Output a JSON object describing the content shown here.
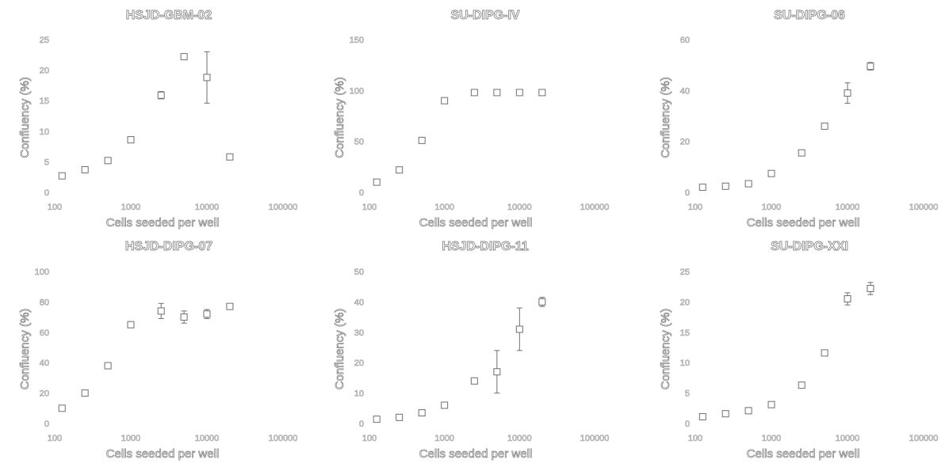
{
  "chart_data": [
    {
      "type": "scatter",
      "title": "HSJD-GBM-02",
      "xlabel": "Cells seeded per well",
      "ylabel": "Confluency (%)",
      "xscale": "log",
      "xlim": [
        100,
        100000
      ],
      "ylim": [
        0,
        25
      ],
      "xticks": [
        "100",
        "1000",
        "10000",
        "100000"
      ],
      "yticks": [
        "0",
        "5",
        "10",
        "15",
        "20",
        "25"
      ],
      "points": [
        {
          "x": 125,
          "y": 2.7,
          "err": 0.3
        },
        {
          "x": 250,
          "y": 3.7,
          "err": 0.3
        },
        {
          "x": 500,
          "y": 5.2,
          "err": 0.3
        },
        {
          "x": 1000,
          "y": 8.6,
          "err": 0.4
        },
        {
          "x": 2500,
          "y": 15.9,
          "err": 0.6
        },
        {
          "x": 5000,
          "y": 22.2,
          "err": 0.5
        },
        {
          "x": 10000,
          "y": 18.8,
          "err": 4.2
        },
        {
          "x": 20000,
          "y": 5.8,
          "err": 0.4
        }
      ]
    },
    {
      "type": "scatter",
      "title": "SU-DIPG-IV",
      "xlabel": "Cells seeded per well",
      "ylabel": "Confluency (%)",
      "xscale": "log",
      "xlim": [
        100,
        100000
      ],
      "ylim": [
        0,
        150
      ],
      "xticks": [
        "100",
        "1000",
        "10000",
        "100000"
      ],
      "yticks": [
        "0",
        "50",
        "100",
        "150"
      ],
      "points": [
        {
          "x": 125,
          "y": 10,
          "err": 1
        },
        {
          "x": 250,
          "y": 22,
          "err": 1
        },
        {
          "x": 500,
          "y": 51,
          "err": 2
        },
        {
          "x": 1000,
          "y": 90,
          "err": 1.5
        },
        {
          "x": 2500,
          "y": 98,
          "err": 1
        },
        {
          "x": 5000,
          "y": 98,
          "err": 1
        },
        {
          "x": 10000,
          "y": 98,
          "err": 1
        },
        {
          "x": 20000,
          "y": 98,
          "err": 1
        }
      ]
    },
    {
      "type": "scatter",
      "title": "SU-DIPG-06",
      "xlabel": "Cells seeded per well",
      "ylabel": "Confluency (%)",
      "xscale": "log",
      "xlim": [
        100,
        100000
      ],
      "ylim": [
        0,
        60
      ],
      "xticks": [
        "100",
        "1000",
        "10000",
        "100000"
      ],
      "yticks": [
        "0",
        "20",
        "40",
        "60"
      ],
      "points": [
        {
          "x": 125,
          "y": 2,
          "err": 0.3
        },
        {
          "x": 250,
          "y": 2.4,
          "err": 0.3
        },
        {
          "x": 500,
          "y": 3.4,
          "err": 0.3
        },
        {
          "x": 1000,
          "y": 7.4,
          "err": 0.5
        },
        {
          "x": 2500,
          "y": 15.5,
          "err": 0.7
        },
        {
          "x": 5000,
          "y": 26,
          "err": 1
        },
        {
          "x": 10000,
          "y": 39,
          "err": 4
        },
        {
          "x": 20000,
          "y": 49.5,
          "err": 1.5
        }
      ]
    },
    {
      "type": "scatter",
      "title": "HSJD-DIPG-07",
      "xlabel": "Cells seeded per well",
      "ylabel": "Confluency (%)",
      "xscale": "log",
      "xlim": [
        100,
        100000
      ],
      "ylim": [
        0,
        100
      ],
      "xticks": [
        "100",
        "1000",
        "10000",
        "100000"
      ],
      "yticks": [
        "0",
        "20",
        "40",
        "60",
        "80",
        "100"
      ],
      "points": [
        {
          "x": 125,
          "y": 10,
          "err": 1
        },
        {
          "x": 250,
          "y": 20,
          "err": 1
        },
        {
          "x": 500,
          "y": 38,
          "err": 1
        },
        {
          "x": 1000,
          "y": 65,
          "err": 1.5
        },
        {
          "x": 2500,
          "y": 74,
          "err": 5
        },
        {
          "x": 5000,
          "y": 70,
          "err": 4
        },
        {
          "x": 10000,
          "y": 72,
          "err": 3
        },
        {
          "x": 20000,
          "y": 77,
          "err": 2
        }
      ]
    },
    {
      "type": "scatter",
      "title": "HSJD-DIPG-11",
      "xlabel": "Cells seeded per well",
      "ylabel": "Confluency (%)",
      "xscale": "log",
      "xlim": [
        100,
        100000
      ],
      "ylim": [
        0,
        50
      ],
      "xticks": [
        "100",
        "1000",
        "10000",
        "100000"
      ],
      "yticks": [
        "0",
        "10",
        "20",
        "30",
        "40",
        "50"
      ],
      "points": [
        {
          "x": 125,
          "y": 1.4,
          "err": 0.3
        },
        {
          "x": 250,
          "y": 2,
          "err": 0.3
        },
        {
          "x": 500,
          "y": 3.5,
          "err": 0.3
        },
        {
          "x": 1000,
          "y": 6,
          "err": 0.4
        },
        {
          "x": 2500,
          "y": 14,
          "err": 0.7
        },
        {
          "x": 5000,
          "y": 17,
          "err": 7
        },
        {
          "x": 10000,
          "y": 31,
          "err": 7
        },
        {
          "x": 20000,
          "y": 40,
          "err": 1.5
        }
      ]
    },
    {
      "type": "scatter",
      "title": "SU-DIPG-XXI",
      "xlabel": "Cells seeded per well",
      "ylabel": "Confluency (%)",
      "xscale": "log",
      "xlim": [
        100,
        100000
      ],
      "ylim": [
        0,
        25
      ],
      "xticks": [
        "100",
        "1000",
        "10000",
        "100000"
      ],
      "yticks": [
        "0",
        "5",
        "10",
        "15",
        "20",
        "25"
      ],
      "points": [
        {
          "x": 125,
          "y": 1.1,
          "err": 0.2
        },
        {
          "x": 250,
          "y": 1.6,
          "err": 0.2
        },
        {
          "x": 500,
          "y": 2.1,
          "err": 0.2
        },
        {
          "x": 1000,
          "y": 3.1,
          "err": 0.3
        },
        {
          "x": 2500,
          "y": 6.3,
          "err": 0.4
        },
        {
          "x": 5000,
          "y": 11.6,
          "err": 0.5
        },
        {
          "x": 10000,
          "y": 20.5,
          "err": 1
        },
        {
          "x": 20000,
          "y": 22.2,
          "err": 1
        }
      ]
    }
  ]
}
